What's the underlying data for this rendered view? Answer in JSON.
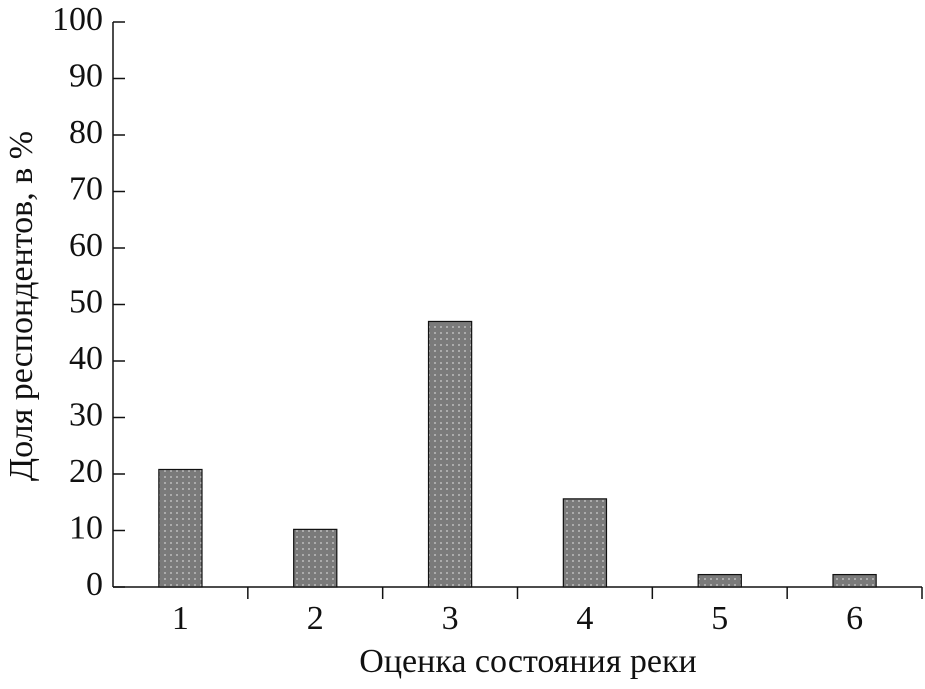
{
  "chart_data": {
    "type": "bar",
    "x_label": "Оценка состояния реки",
    "y_label": "Доля респондентов, в %",
    "categories": [
      "1",
      "2",
      "3",
      "4",
      "5",
      "6"
    ],
    "values": [
      20.8,
      10.2,
      47,
      15.6,
      2.2,
      2.2
    ],
    "color": "#7a7a7a",
    "ylim": [
      0,
      100
    ],
    "yticks": [
      0,
      10,
      20,
      30,
      40,
      50,
      60,
      70,
      80,
      90,
      100
    ],
    "grid": false
  }
}
